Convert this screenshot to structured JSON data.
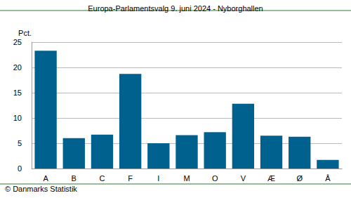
{
  "chart_data": {
    "type": "bar",
    "title": "Europa-Parlamentsvalg 9. juni 2024 - Nyborghallen",
    "y_label": "Pct.",
    "source": "© Danmarks Statistik",
    "categories": [
      "A",
      "B",
      "C",
      "F",
      "I",
      "M",
      "O",
      "V",
      "Æ",
      "Ø",
      "Å"
    ],
    "values": [
      23.3,
      6.0,
      6.7,
      18.7,
      5.0,
      6.6,
      7.2,
      12.8,
      6.5,
      6.3,
      1.7
    ],
    "color": "#00618f",
    "ylim": [
      0,
      25
    ],
    "yticks": [
      0,
      5,
      10,
      15,
      20,
      25
    ],
    "grid": true
  }
}
